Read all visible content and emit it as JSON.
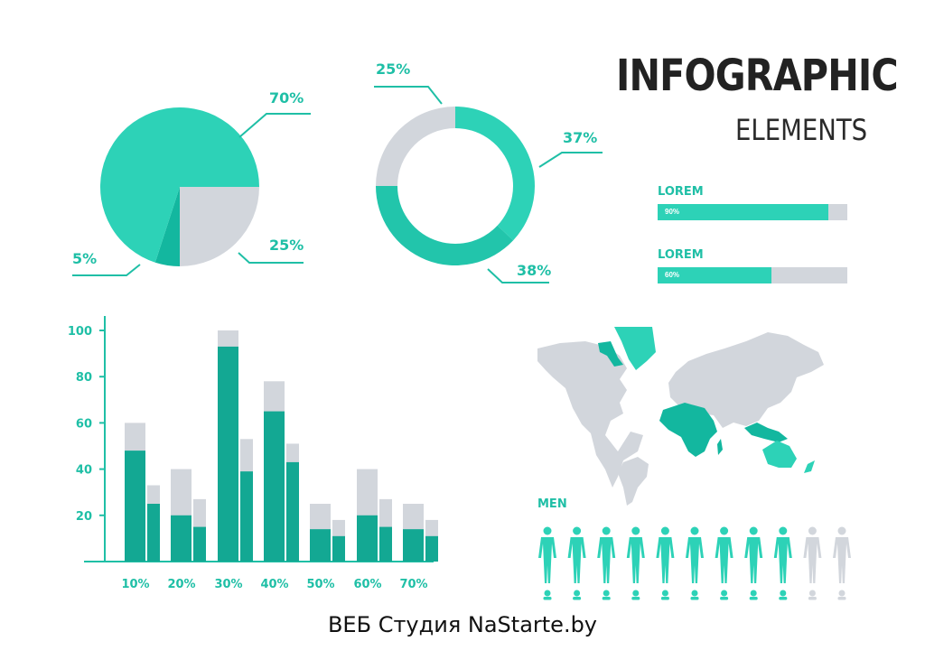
{
  "header": {
    "title": "INFOGRAPHIC",
    "subtitle": "ELEMENTS"
  },
  "colors": {
    "teal": "#2dd2b7",
    "teal_dark": "#13a893",
    "gray": "#d2d6dc",
    "label": "#1fbfa6"
  },
  "chart_data": [
    {
      "type": "pie",
      "labels": [
        "70%",
        "25%",
        "5%"
      ],
      "values": [
        70,
        25,
        5
      ],
      "colors": [
        "#2dd2b7",
        "#d2d6dc",
        "#13b79f"
      ]
    },
    {
      "type": "pie",
      "variant": "donut",
      "labels": [
        "37%",
        "38%",
        "25%"
      ],
      "values": [
        37,
        38,
        25
      ],
      "colors": [
        "#2dd2b7",
        "#22c5ab",
        "#d2d6dc"
      ]
    },
    {
      "type": "bar",
      "categories": [
        "10%",
        "20%",
        "30%",
        "40%",
        "50%",
        "60%",
        "70%"
      ],
      "yticks": [
        20,
        40,
        60,
        80,
        100
      ],
      "ylim": [
        0,
        110
      ],
      "series": [
        {
          "total": [
            60,
            40,
            100,
            78,
            25,
            40,
            25
          ],
          "value": [
            48,
            20,
            93,
            65,
            14,
            20,
            14
          ]
        },
        {
          "total": [
            33,
            27,
            53,
            51,
            18,
            27,
            18
          ],
          "value": [
            25,
            15,
            39,
            43,
            11,
            15,
            11
          ]
        }
      ]
    }
  ],
  "progress_bars": [
    {
      "title": "LOREM",
      "percent_label": "90%",
      "fraction": 0.9
    },
    {
      "title": "LOREM",
      "percent_label": "60%",
      "fraction": 0.6
    }
  ],
  "men": {
    "label": "MEN",
    "total": 11,
    "highlighted": 9
  },
  "footer": "ВЕБ Студия NaStarte.by"
}
